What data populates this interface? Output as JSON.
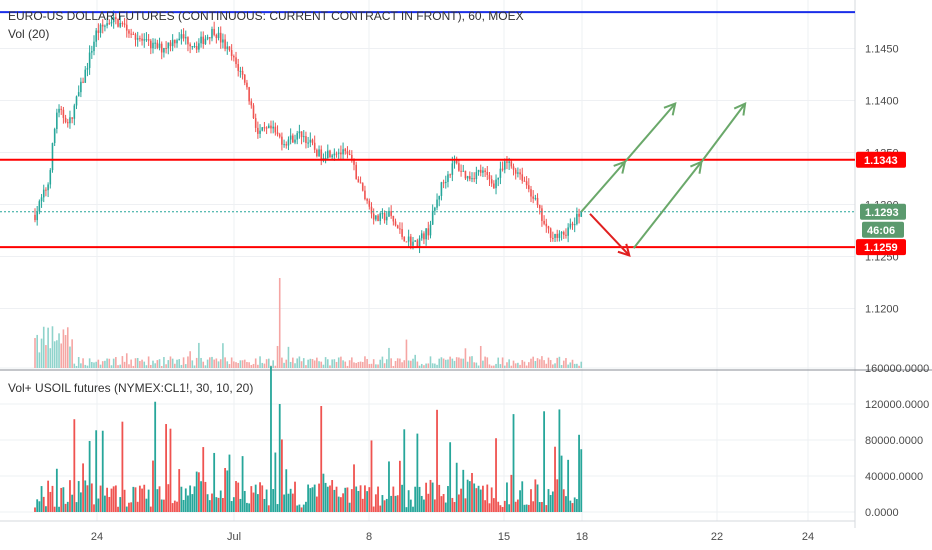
{
  "colors": {
    "up": "#26a69a",
    "down": "#ef5350",
    "vol_up": "#8fd3cb",
    "vol_down": "#f5a5a3",
    "level": "#ff0000",
    "top_line": "#1a2ee8",
    "arrow_up": "#6aa86a",
    "arrow_down": "#e02020",
    "price_badge": "#5b9a6e",
    "grid": "#eef0f3",
    "axis_text": "#4a4a4a"
  },
  "chart_data": [
    {
      "type": "candlestick",
      "title": "EURO-US DOLLAR FUTURES (CONTINUOUS: CURRENT CONTRACT IN FRONT), 60, MOEX",
      "indicator": "Vol (20)",
      "x_tick_labels": [
        "24",
        "Jul",
        "8",
        "15",
        "18",
        "22",
        "24"
      ],
      "y_tick_labels": [
        "1.1450",
        "1.1400",
        "1.1350",
        "1.1300",
        "1.1250",
        "1.1200"
      ],
      "ylim": [
        1.117,
        1.149
      ],
      "grid": true,
      "current_price": "1.1293",
      "countdown": "46:06",
      "levels": [
        {
          "label": "1.1343",
          "value": 1.1343
        },
        {
          "label": "1.1259",
          "value": 1.1259
        }
      ],
      "top_line_value": 1.1485,
      "price_path_anchors": [
        {
          "t": 0,
          "price": 1.129
        },
        {
          "t": 6,
          "price": 1.132
        },
        {
          "t": 10,
          "price": 1.139
        },
        {
          "t": 16,
          "price": 1.138
        },
        {
          "t": 22,
          "price": 1.142
        },
        {
          "t": 28,
          "price": 1.1465
        },
        {
          "t": 35,
          "price": 1.1478
        },
        {
          "t": 42,
          "price": 1.147
        },
        {
          "t": 50,
          "price": 1.1455
        },
        {
          "t": 58,
          "price": 1.145
        },
        {
          "t": 66,
          "price": 1.1462
        },
        {
          "t": 74,
          "price": 1.1453
        },
        {
          "t": 82,
          "price": 1.1468
        },
        {
          "t": 90,
          "price": 1.1442
        },
        {
          "t": 96,
          "price": 1.142
        },
        {
          "t": 102,
          "price": 1.1368
        },
        {
          "t": 108,
          "price": 1.1372
        },
        {
          "t": 114,
          "price": 1.136
        },
        {
          "t": 122,
          "price": 1.1368
        },
        {
          "t": 130,
          "price": 1.1348
        },
        {
          "t": 138,
          "price": 1.1352
        },
        {
          "t": 144,
          "price": 1.1345
        },
        {
          "t": 150,
          "price": 1.1312
        },
        {
          "t": 156,
          "price": 1.1285
        },
        {
          "t": 162,
          "price": 1.129
        },
        {
          "t": 168,
          "price": 1.127
        },
        {
          "t": 174,
          "price": 1.1262
        },
        {
          "t": 180,
          "price": 1.1275
        },
        {
          "t": 186,
          "price": 1.1318
        },
        {
          "t": 192,
          "price": 1.134
        },
        {
          "t": 198,
          "price": 1.1326
        },
        {
          "t": 204,
          "price": 1.1332
        },
        {
          "t": 210,
          "price": 1.132
        },
        {
          "t": 216,
          "price": 1.134
        },
        {
          "t": 222,
          "price": 1.133
        },
        {
          "t": 228,
          "price": 1.1308
        },
        {
          "t": 234,
          "price": 1.1275
        },
        {
          "t": 240,
          "price": 1.1268
        },
        {
          "t": 246,
          "price": 1.128
        },
        {
          "t": 250,
          "price": 1.1293
        }
      ],
      "projections": [
        {
          "from": {
            "t": 250,
            "price": 1.1293
          },
          "to": {
            "t": 270,
            "price": 1.1341
          },
          "direction": "up"
        },
        {
          "from": {
            "t": 270,
            "price": 1.1341
          },
          "to": {
            "t": 293,
            "price": 1.1397
          },
          "direction": "up"
        },
        {
          "from": {
            "t": 254,
            "price": 1.1291
          },
          "to": {
            "t": 272,
            "price": 1.1251
          },
          "direction": "down"
        },
        {
          "from": {
            "t": 274,
            "price": 1.1258
          },
          "to": {
            "t": 305,
            "price": 1.1341
          },
          "direction": "up"
        },
        {
          "from": {
            "t": 305,
            "price": 1.1341
          },
          "to": {
            "t": 325,
            "price": 1.1397
          },
          "direction": "up"
        }
      ]
    },
    {
      "type": "bar",
      "title": "Vol+ USOIL futures (NYMEX:CL1!, 30, 10, 20)",
      "y_tick_labels": [
        "160000.0000",
        "120000.0000",
        "80000.0000",
        "40000.0000",
        "0.0000"
      ],
      "ylim": [
        0,
        170000
      ],
      "grid": true
    }
  ]
}
